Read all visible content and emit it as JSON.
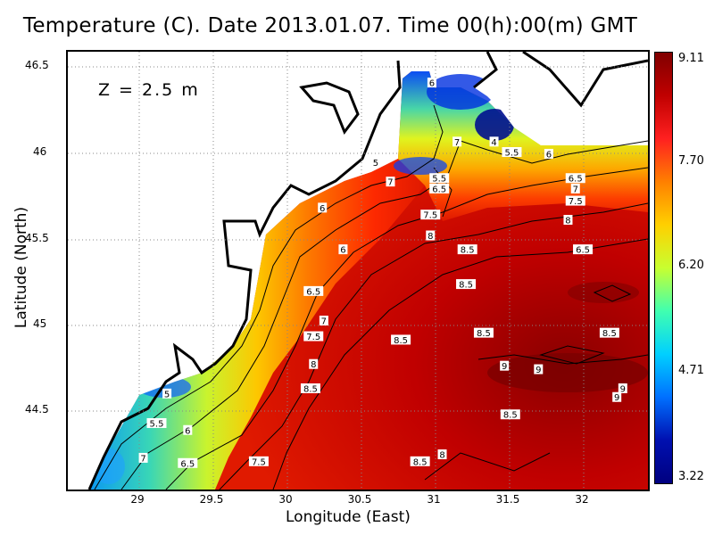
{
  "title": "Temperature (C). Date 2013.01.07. Time 00(h):00(m) GMT",
  "depth_label": "Z = 2.5 m",
  "x_axis": {
    "label": "Longitude (East)",
    "ticks": [
      "29",
      "29.5",
      "30",
      "30.5",
      "31",
      "31.5",
      "32"
    ]
  },
  "y_axis": {
    "label": "Latitude (North)",
    "ticks": [
      "46.5",
      "46",
      "45.5",
      "45",
      "44.5"
    ]
  },
  "colorbar": {
    "labels": [
      "9.11",
      "7.70",
      "6.20",
      "4.71",
      "3.22"
    ],
    "colors": [
      "#800000",
      "#c00000",
      "#ff2020",
      "#ff8000",
      "#ffd000",
      "#c8ff30",
      "#40ffb0",
      "#00d0ff",
      "#0070ff",
      "#0010b0",
      "#000080"
    ]
  },
  "contour_labels": [
    {
      "text": "6",
      "x": 30.98,
      "y": 46.37
    },
    {
      "text": "7",
      "x": 31.15,
      "y": 46.03
    },
    {
      "text": "4",
      "x": 31.4,
      "y": 46.03
    },
    {
      "text": "5.5",
      "x": 31.52,
      "y": 45.97
    },
    {
      "text": "6",
      "x": 31.77,
      "y": 45.96
    },
    {
      "text": "5",
      "x": 30.6,
      "y": 45.91
    },
    {
      "text": "5.5",
      "x": 31.03,
      "y": 45.82
    },
    {
      "text": "7",
      "x": 30.7,
      "y": 45.8
    },
    {
      "text": "6.5",
      "x": 31.03,
      "y": 45.76
    },
    {
      "text": "6.5",
      "x": 31.95,
      "y": 45.82
    },
    {
      "text": "7",
      "x": 31.95,
      "y": 45.76
    },
    {
      "text": "7.5",
      "x": 31.95,
      "y": 45.69
    },
    {
      "text": "6",
      "x": 30.24,
      "y": 45.65
    },
    {
      "text": "7.5",
      "x": 30.97,
      "y": 45.61
    },
    {
      "text": "8",
      "x": 31.9,
      "y": 45.58
    },
    {
      "text": "8",
      "x": 30.97,
      "y": 45.49
    },
    {
      "text": "6",
      "x": 30.38,
      "y": 45.41
    },
    {
      "text": "8.5",
      "x": 31.22,
      "y": 45.41
    },
    {
      "text": "6.5",
      "x": 32.0,
      "y": 45.41
    },
    {
      "text": "8.5",
      "x": 31.21,
      "y": 45.21
    },
    {
      "text": "6.5",
      "x": 30.18,
      "y": 45.17
    },
    {
      "text": "7",
      "x": 30.25,
      "y": 45.0
    },
    {
      "text": "8.5",
      "x": 30.77,
      "y": 44.89
    },
    {
      "text": "7.5",
      "x": 30.18,
      "y": 44.91
    },
    {
      "text": "8.5",
      "x": 31.33,
      "y": 44.93
    },
    {
      "text": "8.5",
      "x": 32.18,
      "y": 44.93
    },
    {
      "text": "8",
      "x": 30.18,
      "y": 44.75
    },
    {
      "text": "9",
      "x": 31.47,
      "y": 44.74
    },
    {
      "text": "9",
      "x": 31.7,
      "y": 44.72
    },
    {
      "text": "8.5",
      "x": 30.16,
      "y": 44.61
    },
    {
      "text": "5",
      "x": 29.19,
      "y": 44.58
    },
    {
      "text": "9",
      "x": 32.27,
      "y": 44.61
    },
    {
      "text": "9",
      "x": 32.23,
      "y": 44.56
    },
    {
      "text": "5.5",
      "x": 29.12,
      "y": 44.41
    },
    {
      "text": "6",
      "x": 29.33,
      "y": 44.37
    },
    {
      "text": "8.5",
      "x": 31.51,
      "y": 44.46
    },
    {
      "text": "8",
      "x": 31.05,
      "y": 44.23
    },
    {
      "text": "7",
      "x": 29.03,
      "y": 44.21
    },
    {
      "text": "6.5",
      "x": 29.33,
      "y": 44.18
    },
    {
      "text": "7.5",
      "x": 29.81,
      "y": 44.19
    },
    {
      "text": "8.5",
      "x": 30.9,
      "y": 44.19
    }
  ]
}
